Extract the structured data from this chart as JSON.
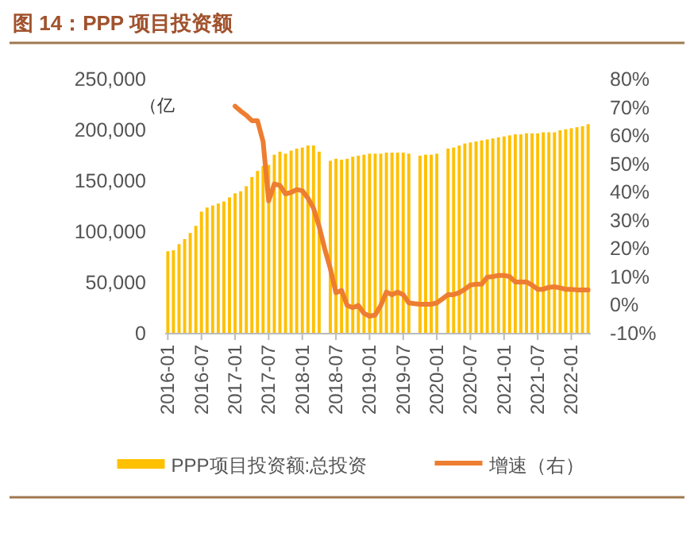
{
  "chart_data": {
    "type": "bar",
    "title": "图 14：PPP 项目投资额",
    "ylabel": "（亿",
    "categories": [
      "2016-01",
      null,
      null,
      null,
      null,
      null,
      "2016-07",
      null,
      null,
      null,
      null,
      null,
      "2017-01",
      null,
      null,
      null,
      null,
      null,
      "2017-07",
      null,
      null,
      null,
      null,
      null,
      "2018-01",
      null,
      null,
      null,
      null,
      null,
      "2018-07",
      null,
      null,
      null,
      null,
      null,
      "2019-01",
      null,
      null,
      null,
      null,
      null,
      "2019-07",
      null,
      null,
      null,
      null,
      null,
      "2020-01",
      null,
      null,
      null,
      null,
      null,
      "2020-07",
      null,
      null,
      null,
      null,
      null,
      "2021-01",
      null,
      null,
      null,
      null,
      null,
      "2021-07",
      null,
      null,
      null,
      null,
      null,
      "2022-01",
      null,
      null,
      null
    ],
    "series": [
      {
        "name": "PPP项目投资额:总投资",
        "color": "#ffc000",
        "values": [
          81000,
          82000,
          88000,
          93000,
          99000,
          106000,
          120000,
          124000,
          126000,
          128000,
          130000,
          134000,
          138000,
          140000,
          145000,
          154000,
          160000,
          165000,
          166000,
          176000,
          179000,
          177000,
          180000,
          182000,
          183000,
          185000,
          185000,
          179000,
          null,
          170000,
          172000,
          171000,
          172000,
          174000,
          175000,
          176000,
          177000,
          177000,
          177000,
          178000,
          178000,
          178000,
          178000,
          177000,
          null,
          175000,
          176000,
          176000,
          177000,
          null,
          182000,
          183000,
          185000,
          187000,
          188000,
          189000,
          190000,
          191000,
          192000,
          193000,
          194000,
          195000,
          196000,
          196000,
          197000,
          197000,
          197000,
          198000,
          198000,
          198000,
          200000,
          201000,
          202000,
          203000,
          204000,
          206000
        ]
      },
      {
        "name": "增速（右）",
        "type": "line",
        "axis": "y2",
        "color": "#ed7d31",
        "values": [
          null,
          null,
          null,
          null,
          null,
          null,
          null,
          null,
          null,
          null,
          null,
          null,
          70.5,
          68.8,
          67.3,
          65.4,
          65.4,
          58,
          37,
          43,
          42.5,
          39.5,
          40,
          41,
          40.6,
          38,
          34.4,
          28,
          20,
          13,
          4.5,
          5.3,
          0,
          -0.8,
          0,
          -2.8,
          -3.8,
          -3.4,
          0,
          4.7,
          3.8,
          4.7,
          3.8,
          0.9,
          0.6,
          0.4,
          0.4,
          0.4,
          0.9,
          2.3,
          3.8,
          3.8,
          4.5,
          5.7,
          7.2,
          7.5,
          7.5,
          10,
          10.2,
          10.6,
          10.6,
          10.2,
          8.3,
          8.3,
          8.3,
          7.2,
          5.7,
          5.7,
          6.4,
          6.6,
          6.2,
          5.7,
          5.7,
          5.5,
          5.5,
          5.5
        ]
      }
    ],
    "ylim": [
      0,
      250000
    ],
    "yticks": [
      {
        "value": 0,
        "label": "0"
      },
      {
        "value": 50000,
        "label": "50,000"
      },
      {
        "value": 100000,
        "label": "100,000"
      },
      {
        "value": 150000,
        "label": "150,000"
      },
      {
        "value": 200000,
        "label": "200,000"
      },
      {
        "value": 250000,
        "label": "250,000"
      }
    ],
    "y2lim": [
      -10,
      80
    ],
    "y2ticks": [
      {
        "value": -10,
        "label": "-10%"
      },
      {
        "value": 0,
        "label": "0%"
      },
      {
        "value": 10,
        "label": "10%"
      },
      {
        "value": 20,
        "label": "20%"
      },
      {
        "value": 30,
        "label": "30%"
      },
      {
        "value": 40,
        "label": "40%"
      },
      {
        "value": 50,
        "label": "50%"
      },
      {
        "value": 60,
        "label": "60%"
      },
      {
        "value": 70,
        "label": "70%"
      },
      {
        "value": 80,
        "label": "80%"
      }
    ],
    "legend": "bottom",
    "grid": false
  }
}
